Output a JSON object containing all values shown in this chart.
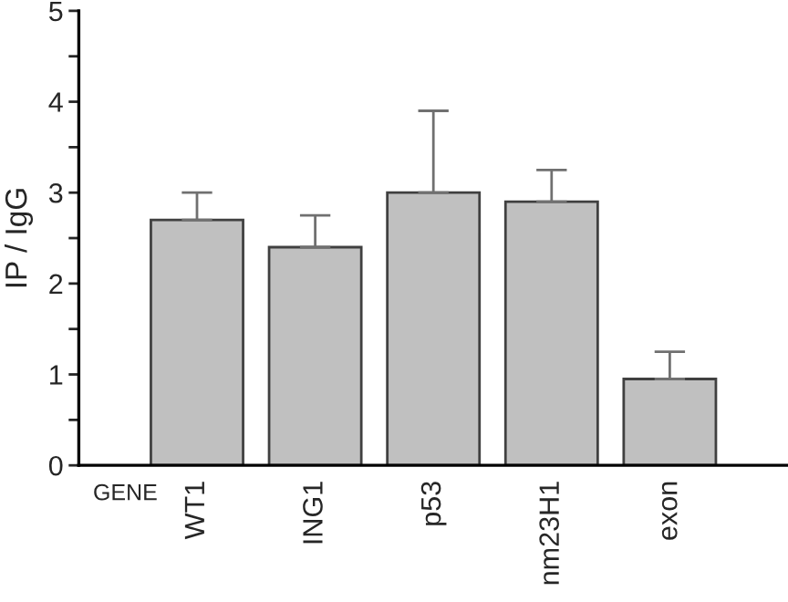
{
  "chart_data": {
    "type": "bar",
    "ylabel": "IP / IgG",
    "xlabel": "GENE",
    "categories": [
      "WT1",
      "ING1",
      "p53",
      "nm23H1",
      "exon"
    ],
    "values": [
      2.7,
      2.4,
      3.0,
      2.9,
      0.95
    ],
    "errors": [
      [
        2.7,
        3.0
      ],
      [
        2.4,
        2.75
      ],
      [
        3.0,
        3.9
      ],
      [
        2.9,
        3.25
      ],
      [
        0.95,
        1.25
      ]
    ],
    "color": "#c0c0c0",
    "ylim": [
      0,
      5
    ],
    "yticks": [
      0,
      {
        "value": 0.5,
        "label": null
      },
      1,
      {
        "value": 1.5,
        "label": null
      },
      2,
      {
        "value": 2.5,
        "label": null
      },
      3,
      {
        "value": 3.5,
        "label": null
      },
      4,
      {
        "value": 4.5,
        "label": null
      },
      5
    ],
    "grid": false,
    "legend": false
  }
}
